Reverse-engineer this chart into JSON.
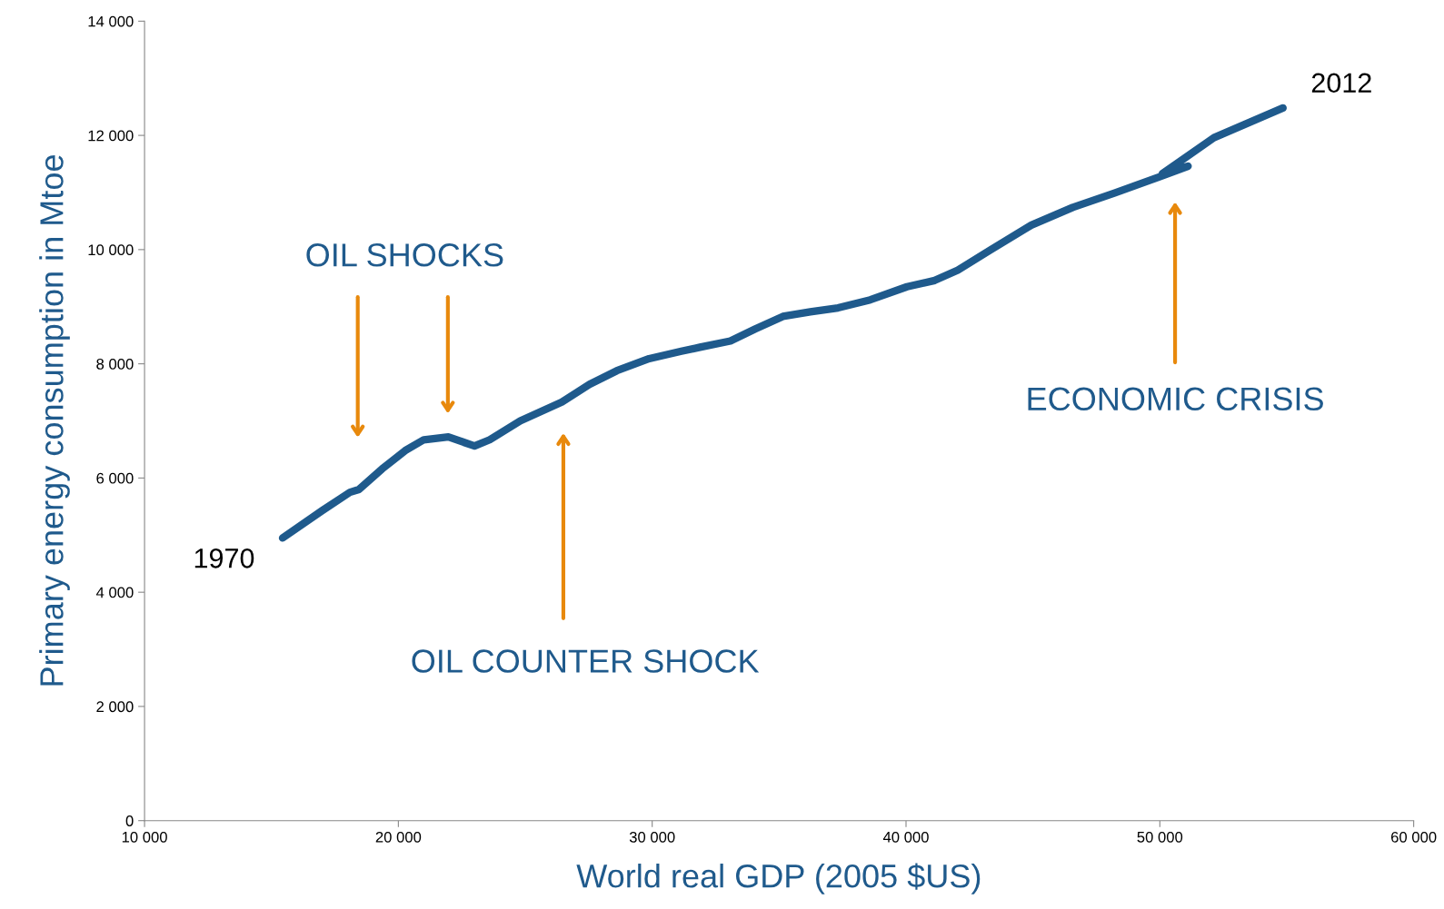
{
  "chart_data": {
    "type": "line",
    "xlabel": "World real GDP (2005 $US)",
    "ylabel": "Primary energy consumption in Mtoe",
    "xlim": [
      10000,
      60000
    ],
    "ylim": [
      0,
      14000
    ],
    "xticks": [
      {
        "value": 10000,
        "label": "10 000"
      },
      {
        "value": 20000,
        "label": "20 000"
      },
      {
        "value": 30000,
        "label": "30 000"
      },
      {
        "value": 40000,
        "label": "40 000"
      },
      {
        "value": 50000,
        "label": "50 000"
      },
      {
        "value": 60000,
        "label": "60 000"
      }
    ],
    "yticks": [
      0,
      {
        "value": 2000,
        "label": "2 000"
      },
      {
        "value": 4000,
        "label": "4 000"
      },
      {
        "value": 6000,
        "label": "6 000"
      },
      {
        "value": 8000,
        "label": "8 000"
      },
      {
        "value": 10000,
        "label": "10 000"
      },
      {
        "value": 12000,
        "label": "12 000"
      },
      {
        "value": 14000,
        "label": "14 000"
      }
    ],
    "grid": false,
    "legend": false,
    "marker": "none",
    "line_style": "solid",
    "series": [
      {
        "color": "#1f5a8c",
        "x": [
          15440,
          17000,
          18090,
          18450,
          19360,
          20270,
          21000,
          21970,
          23000,
          23600,
          24800,
          26440,
          27530,
          28610,
          29880,
          31150,
          31880,
          33080,
          34060,
          35150,
          36230,
          37320,
          38590,
          40040,
          41130,
          42040,
          43310,
          44940,
          46570,
          48210,
          50020,
          51110,
          50100,
          52130,
          54850
        ],
        "values": [
          4950,
          5430,
          5750,
          5800,
          6160,
          6480,
          6670,
          6720,
          6560,
          6670,
          7000,
          7330,
          7640,
          7880,
          8090,
          8220,
          8290,
          8400,
          8610,
          8830,
          8910,
          8980,
          9120,
          9350,
          9460,
          9640,
          9990,
          10430,
          10740,
          10990,
          11280,
          11460,
          11330,
          11960,
          12480
        ]
      }
    ],
    "annotations": [
      {
        "text": "1970",
        "x": 15440,
        "y": 4950
      },
      {
        "text": "2012",
        "x": 54850,
        "y": 12480
      },
      "OIL SHOCKS",
      "OIL COUNTER SHOCK",
      "ECONOMIC CRISIS"
    ]
  }
}
